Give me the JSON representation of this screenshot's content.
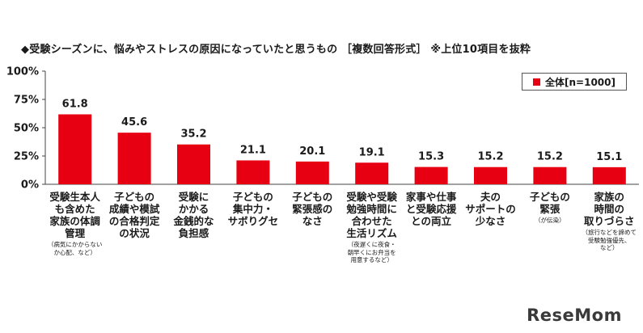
{
  "title": "◆受験シーズンに、悩みやストレスの原因になっていたと思うもの ［複数回答形式］ ※上位10項目を抜粋",
  "logo": "ReseMom",
  "chart_data": {
    "type": "bar",
    "ylim": [
      0,
      100
    ],
    "yticks": [
      "0%",
      "25%",
      "50%",
      "75%",
      "100%"
    ],
    "grid": false,
    "legend_position": "top-right",
    "series": [
      {
        "name": "全体[n=1000]",
        "color": "#e60012",
        "values": [
          61.8,
          45.6,
          35.2,
          21.1,
          20.1,
          19.1,
          15.3,
          15.2,
          15.2,
          15.1
        ]
      }
    ],
    "value_labels": [
      "61.8",
      "45.6",
      "35.2",
      "21.1",
      "20.1",
      "19.1",
      "15.3",
      "15.2",
      "15.2",
      "15.1"
    ],
    "categories": [
      {
        "label": "受験生本人\nも含めた\n家族の体調\n管理",
        "note": "（病気にかからない\nか心配、など）"
      },
      {
        "label": "子どもの\n成績や模試\nの合格判定\nの状況",
        "note": ""
      },
      {
        "label": "受験に\nかかる\n金銭的な\n負担感",
        "note": ""
      },
      {
        "label": "子どもの\n集中力・\nサボりグセ",
        "note": ""
      },
      {
        "label": "子どもの\n緊張感の\nなさ",
        "note": ""
      },
      {
        "label": "受験や受験\n勉強時間に\n合わせた\n生活リズム",
        "note": "（夜遅くに夜食・\n朝早くにお弁当を\n用意するなど）"
      },
      {
        "label": "家事や仕事\nと受験応援\nとの両立",
        "note": ""
      },
      {
        "label": "夫の\nサポートの\n少なさ",
        "note": ""
      },
      {
        "label": "子どもの\n緊張",
        "note": "（が伝染）"
      },
      {
        "label": "家族の\n時間の\n取りづらさ",
        "note": "（旅行などを諦めて\n受験勉強優先、\nなど）"
      }
    ]
  }
}
